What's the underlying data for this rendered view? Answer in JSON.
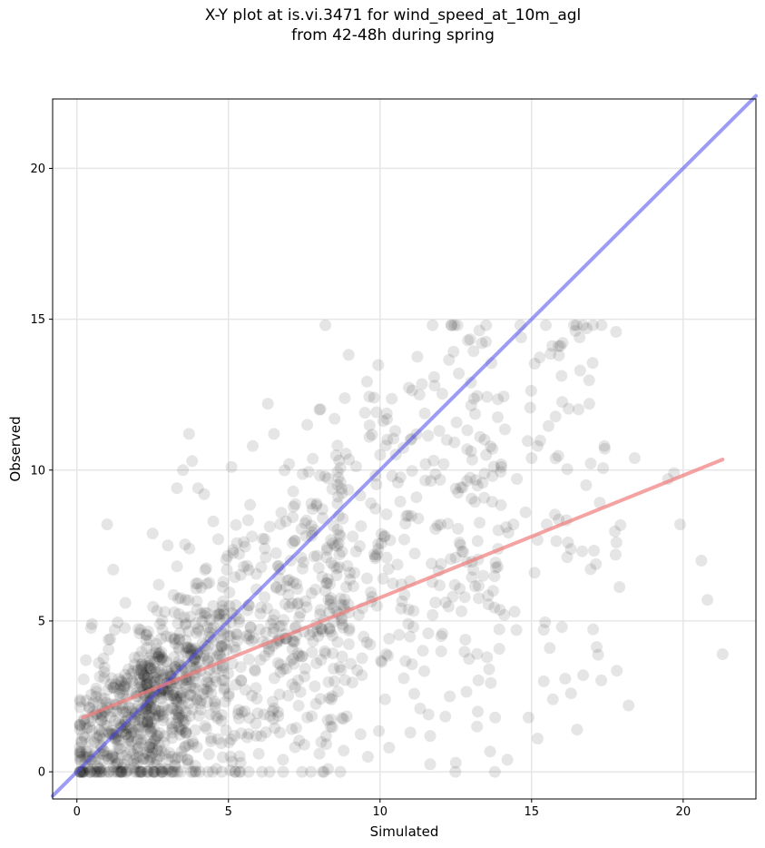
{
  "chart_data": {
    "type": "scatter",
    "title_lines": [
      "X-Y plot at is.vi.3471 for wind_speed_at_10m_agl",
      "from 42-48h during spring"
    ],
    "xlabel": "Simulated",
    "ylabel": "Observed",
    "xlim": [
      -0.8,
      22.4
    ],
    "ylim": [
      -0.9,
      22.3
    ],
    "xticks": [
      0,
      5,
      10,
      15,
      20
    ],
    "yticks": [
      0,
      5,
      10,
      15,
      20
    ],
    "grid": true,
    "points": {
      "color": "#000000",
      "count_estimate": 1500,
      "approximate_points": [
        [
          0.2,
          1.2
        ],
        [
          0.3,
          3.7
        ],
        [
          0.5,
          4.9
        ],
        [
          0.8,
          0.6
        ],
        [
          1.0,
          8.2
        ],
        [
          1.2,
          6.7
        ],
        [
          1.3,
          2.0
        ],
        [
          1.5,
          1.5
        ],
        [
          1.8,
          1.0
        ],
        [
          2.0,
          2.5
        ],
        [
          2.2,
          3.2
        ],
        [
          2.5,
          7.9
        ],
        [
          2.7,
          6.2
        ],
        [
          3.0,
          7.5
        ],
        [
          3.3,
          9.4
        ],
        [
          3.5,
          10.0
        ],
        [
          3.7,
          11.2
        ],
        [
          3.8,
          10.3
        ],
        [
          4.0,
          9.4
        ],
        [
          4.2,
          9.2
        ],
        [
          4.5,
          8.3
        ],
        [
          5.1,
          10.1
        ],
        [
          5.8,
          10.8
        ],
        [
          6.3,
          12.2
        ],
        [
          6.5,
          11.2
        ],
        [
          7.0,
          10.2
        ],
        [
          7.6,
          11.5
        ],
        [
          8.0,
          12.0
        ],
        [
          8.2,
          14.8
        ],
        [
          8.5,
          11.7
        ],
        [
          9.5,
          11.9
        ],
        [
          9.8,
          12.4
        ],
        [
          10.5,
          11.3
        ],
        [
          11.0,
          11.0
        ],
        [
          11.3,
          12.5
        ],
        [
          11.5,
          10.2
        ],
        [
          11.8,
          12.8
        ],
        [
          12.2,
          11.0
        ],
        [
          12.6,
          13.2
        ],
        [
          12.9,
          14.3
        ],
        [
          13.0,
          12.9
        ],
        [
          13.3,
          11.1
        ],
        [
          13.5,
          10.5
        ],
        [
          14.0,
          10.1
        ],
        [
          14.4,
          8.2
        ],
        [
          14.8,
          8.6
        ],
        [
          15.0,
          10.4
        ],
        [
          15.2,
          10.8
        ],
        [
          15.5,
          8.2
        ],
        [
          15.9,
          13.8
        ],
        [
          16.2,
          7.6
        ],
        [
          16.6,
          13.3
        ],
        [
          16.8,
          9.5
        ],
        [
          17.4,
          10.8
        ],
        [
          17.8,
          7.6
        ],
        [
          18.2,
          2.2
        ],
        [
          18.4,
          10.4
        ],
        [
          19.5,
          9.7
        ],
        [
          19.7,
          9.9
        ],
        [
          19.9,
          8.2
        ],
        [
          20.6,
          7.0
        ],
        [
          20.8,
          5.7
        ],
        [
          21.3,
          3.9
        ],
        [
          16.5,
          1.4
        ],
        [
          16.7,
          3.2
        ],
        [
          16.3,
          2.6
        ],
        [
          15.7,
          2.4
        ],
        [
          15.2,
          1.1
        ],
        [
          14.2,
          0.4
        ],
        [
          12.5,
          0.3
        ],
        [
          13.8,
          1.8
        ],
        [
          14.9,
          1.8
        ],
        [
          15.4,
          3.0
        ],
        [
          15.6,
          4.1
        ],
        [
          16.0,
          4.8
        ],
        [
          15.1,
          6.6
        ],
        [
          14.5,
          4.7
        ],
        [
          14.1,
          5.2
        ],
        [
          13.6,
          3.4
        ],
        [
          13.2,
          1.5
        ],
        [
          12.3,
          2.5
        ],
        [
          11.6,
          1.9
        ],
        [
          11.0,
          1.3
        ],
        [
          10.3,
          0.8
        ],
        [
          9.6,
          0.5
        ],
        [
          8.8,
          0.7
        ],
        [
          8.0,
          0.6
        ],
        [
          7.5,
          0.9
        ],
        [
          6.8,
          0.4
        ],
        [
          6.0,
          0.6
        ],
        [
          5.4,
          0.3
        ],
        [
          4.6,
          0.1
        ],
        [
          3.9,
          0.2
        ],
        [
          2.8,
          0.0
        ],
        [
          2.0,
          0.3
        ],
        [
          1.2,
          0.5
        ],
        [
          0.6,
          1.9
        ],
        [
          0.9,
          3.1
        ],
        [
          1.1,
          4.4
        ],
        [
          1.6,
          5.6
        ],
        [
          2.3,
          4.1
        ],
        [
          2.9,
          5.3
        ],
        [
          3.4,
          4.6
        ],
        [
          4.1,
          6.1
        ],
        [
          4.8,
          5.5
        ],
        [
          5.5,
          6.8
        ],
        [
          6.2,
          7.4
        ],
        [
          6.9,
          8.3
        ],
        [
          7.4,
          7.1
        ],
        [
          8.1,
          8.7
        ],
        [
          8.7,
          9.6
        ],
        [
          9.1,
          7.8
        ],
        [
          9.7,
          8.9
        ],
        [
          10.4,
          9.8
        ],
        [
          11.2,
          9.1
        ],
        [
          12.0,
          8.2
        ],
        [
          12.7,
          7.3
        ],
        [
          13.4,
          6.5
        ],
        [
          10.1,
          6.4
        ],
        [
          9.3,
          5.2
        ],
        [
          8.6,
          4.3
        ],
        [
          7.9,
          3.6
        ],
        [
          7.2,
          2.8
        ],
        [
          6.5,
          2.1
        ],
        [
          5.9,
          1.6
        ],
        [
          5.2,
          1.2
        ],
        [
          4.4,
          1.9
        ],
        [
          3.6,
          1.3
        ],
        [
          2.6,
          1.1
        ],
        [
          1.9,
          1.7
        ],
        [
          1.4,
          2.6
        ],
        [
          2.4,
          2.2
        ],
        [
          3.1,
          2.9
        ],
        [
          3.9,
          3.4
        ],
        [
          4.7,
          3.9
        ],
        [
          5.6,
          4.5
        ],
        [
          6.4,
          4.9
        ],
        [
          7.3,
          5.6
        ],
        [
          8.2,
          6.0
        ],
        [
          9.0,
          6.6
        ],
        [
          9.9,
          7.2
        ],
        [
          10.8,
          7.7
        ],
        [
          11.7,
          6.9
        ],
        [
          12.4,
          5.8
        ],
        [
          11.1,
          4.8
        ],
        [
          10.2,
          3.9
        ],
        [
          9.4,
          3.2
        ],
        [
          8.4,
          2.4
        ],
        [
          7.6,
          1.8
        ],
        [
          6.7,
          1.3
        ],
        [
          5.0,
          2.5
        ],
        [
          4.3,
          4.8
        ],
        [
          3.2,
          3.8
        ],
        [
          2.1,
          4.7
        ],
        [
          1.7,
          3.4
        ],
        [
          0.7,
          2.3
        ]
      ]
    },
    "reference_line": {
      "name": "",
      "color": "#4a4aee",
      "x": [
        -0.8,
        22.4
      ],
      "y": [
        -0.8,
        22.4
      ]
    },
    "fit_line": {
      "name": "",
      "color": "#f07a7a",
      "x": [
        0.2,
        21.3
      ],
      "y": [
        1.8,
        10.35
      ]
    }
  }
}
